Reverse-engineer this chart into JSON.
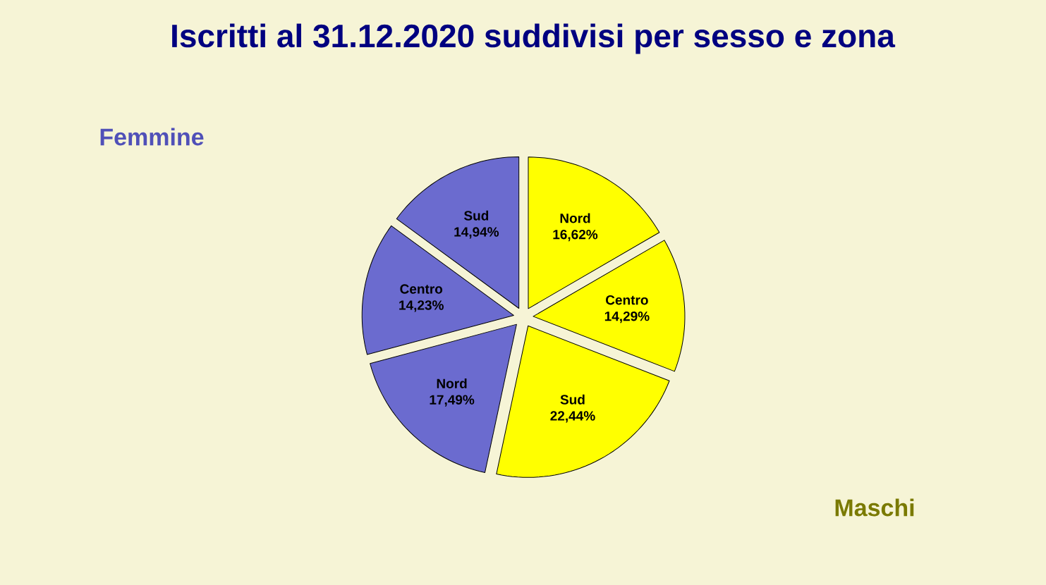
{
  "chart_data": {
    "type": "pie",
    "title": "Iscritti al 31.12.2020 suddivisi per sesso e zona",
    "categories": [
      "Nord",
      "Centro",
      "Sud",
      "Nord",
      "Centro",
      "Sud"
    ],
    "values": [
      16.62,
      14.29,
      22.44,
      17.49,
      14.23,
      14.94
    ],
    "value_labels": [
      "16,62%",
      "14,29%",
      "22,44%",
      "17,49%",
      "14,23%",
      "14,94%"
    ],
    "colors": [
      "#ffff00",
      "#ffff00",
      "#ffff00",
      "#6b6bcf",
      "#6b6bcf",
      "#6b6bcf"
    ],
    "annotations": [
      "Femmine",
      "Maschi"
    ]
  }
}
